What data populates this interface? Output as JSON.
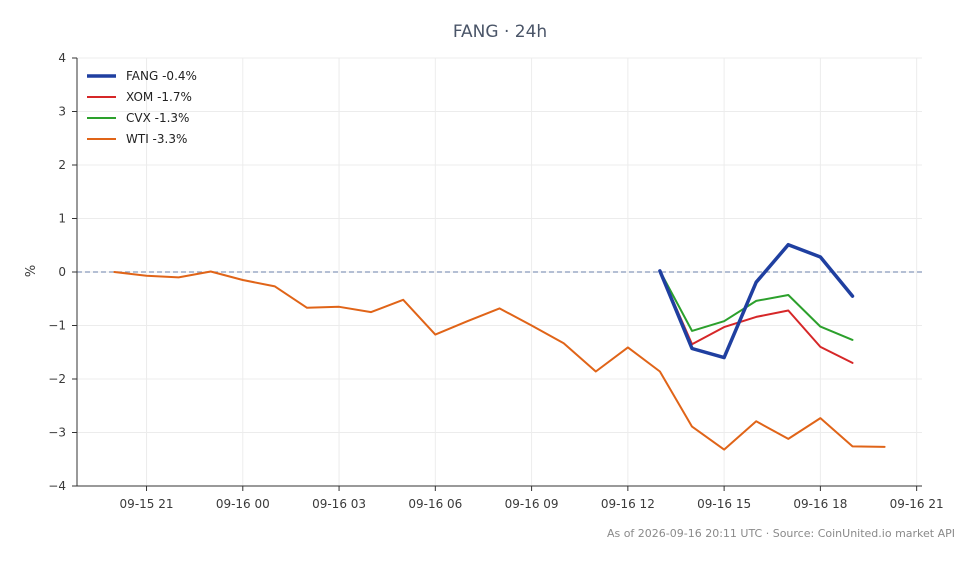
{
  "chart_data": {
    "type": "line",
    "title": "FANG · 24h",
    "xlabel": "",
    "ylabel": "%",
    "ylim": [
      -4,
      4
    ],
    "yticks": [
      "−4",
      "−3",
      "−2",
      "−1",
      "0",
      "1",
      "2",
      "3",
      "4"
    ],
    "xticks": [
      "09-15 21",
      "09-16 00",
      "09-16 03",
      "09-16 06",
      "09-16 09",
      "09-16 12",
      "09-16 15",
      "09-16 18",
      "09-16 21"
    ],
    "x_range": [
      "2026-09-15 18:50",
      "2026-09-16 21:10"
    ],
    "grid": true,
    "legend_position": "top-left",
    "reference_line": {
      "y": 0,
      "style": "dashed",
      "color": "#8899bb"
    },
    "series": [
      {
        "name": "FANG -0.4%",
        "color": "#1f3fa0",
        "width": 3.5,
        "x": [
          "2026-09-16 13:00",
          "2026-09-16 14:00",
          "2026-09-16 15:00",
          "2026-09-16 16:00",
          "2026-09-16 17:00",
          "2026-09-16 18:00",
          "2026-09-16 19:00"
        ],
        "values": [
          0.02,
          -1.43,
          -1.6,
          -0.19,
          0.51,
          0.28,
          -0.45
        ]
      },
      {
        "name": "XOM -1.7%",
        "color": "#d62728",
        "width": 2,
        "x": [
          "2026-09-16 13:00",
          "2026-09-16 14:00",
          "2026-09-16 15:00",
          "2026-09-16 16:00",
          "2026-09-16 17:00",
          "2026-09-16 18:00",
          "2026-09-16 19:00"
        ],
        "values": [
          0.02,
          -1.35,
          -1.03,
          -0.84,
          -0.72,
          -1.4,
          -1.7
        ]
      },
      {
        "name": "CVX -1.3%",
        "color": "#2ca02c",
        "width": 2,
        "x": [
          "2026-09-16 13:00",
          "2026-09-16 14:00",
          "2026-09-16 15:00",
          "2026-09-16 16:00",
          "2026-09-16 17:00",
          "2026-09-16 18:00",
          "2026-09-16 19:00"
        ],
        "values": [
          0.02,
          -1.1,
          -0.92,
          -0.54,
          -0.43,
          -1.02,
          -1.27
        ]
      },
      {
        "name": "WTI -3.3%",
        "color": "#e06418",
        "width": 2,
        "x": [
          "2026-09-15 20:00",
          "2026-09-15 21:00",
          "2026-09-15 22:00",
          "2026-09-15 23:00",
          "2026-09-16 00:00",
          "2026-09-16 01:00",
          "2026-09-16 02:00",
          "2026-09-16 03:00",
          "2026-09-16 04:00",
          "2026-09-16 05:00",
          "2026-09-16 06:00",
          "2026-09-16 07:00",
          "2026-09-16 08:00",
          "2026-09-16 09:00",
          "2026-09-16 10:00",
          "2026-09-16 11:00",
          "2026-09-16 12:00",
          "2026-09-16 13:00",
          "2026-09-16 14:00",
          "2026-09-16 15:00",
          "2026-09-16 16:00",
          "2026-09-16 17:00",
          "2026-09-16 18:00",
          "2026-09-16 19:00",
          "2026-09-16 20:00"
        ],
        "values": [
          0.0,
          -0.07,
          -0.1,
          0.01,
          -0.15,
          -0.27,
          -0.67,
          -0.65,
          -0.75,
          -0.52,
          -1.17,
          -0.92,
          -0.68,
          -1.0,
          -1.33,
          -1.86,
          -1.41,
          -1.86,
          -2.89,
          -3.32,
          -2.79,
          -3.12,
          -2.73,
          -3.26,
          -3.27
        ]
      }
    ]
  },
  "footer": "As of 2026-09-16 20:11 UTC · Source: CoinUnited.io market API"
}
